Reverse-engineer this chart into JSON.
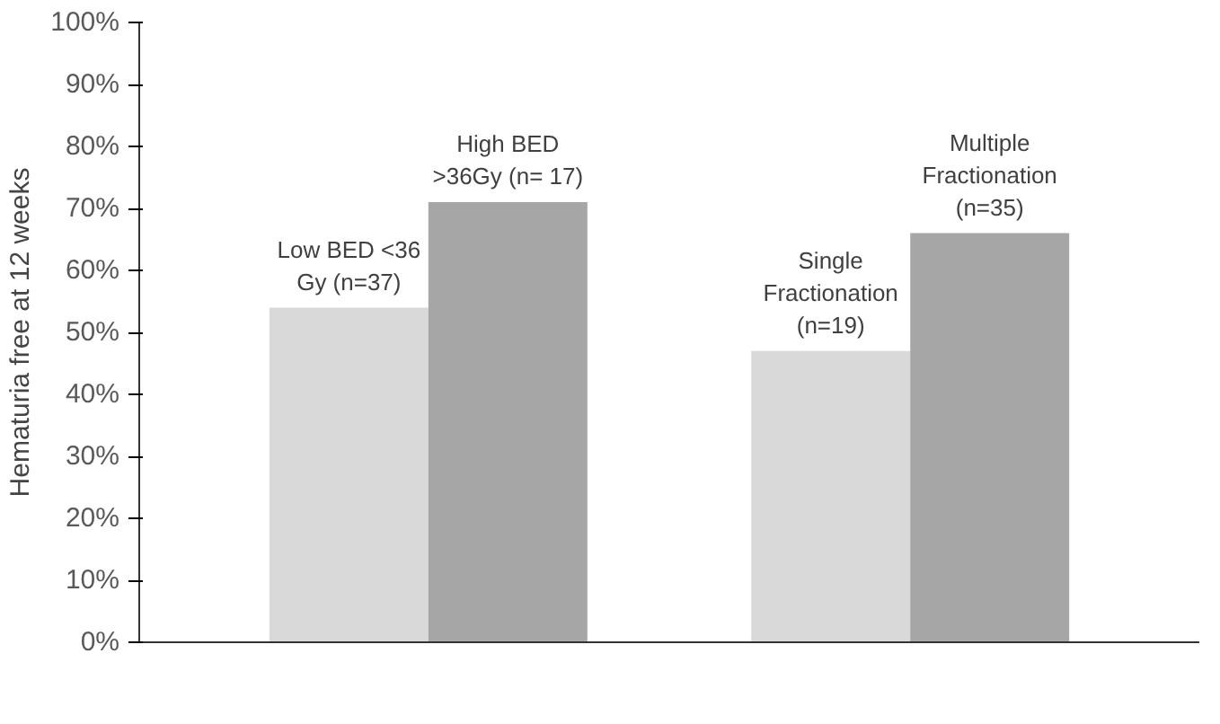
{
  "chart_data": {
    "type": "bar",
    "ylabel": "Hematuria free at 12 weeks",
    "categories": [
      null,
      null
    ],
    "series": [
      {
        "color": "#d9d9d9",
        "values": [
          54,
          47
        ]
      },
      {
        "color": "#a6a6a6",
        "values": [
          71,
          66
        ]
      }
    ],
    "ylim": [
      0,
      100
    ],
    "yticks": [
      {
        "value": 0,
        "label": "0%"
      },
      {
        "value": 10,
        "label": "10%"
      },
      {
        "value": 20,
        "label": "20%"
      },
      {
        "value": 30,
        "label": "30%"
      },
      {
        "value": 40,
        "label": "40%"
      },
      {
        "value": 50,
        "label": "50%"
      },
      {
        "value": 60,
        "label": "60%"
      },
      {
        "value": 70,
        "label": "70%"
      },
      {
        "value": 80,
        "label": "80%"
      },
      {
        "value": 90,
        "label": "90%"
      },
      {
        "value": 100,
        "label": "100%"
      }
    ],
    "annotations": [
      {
        "text": "Low BED <36\nGy (n=37)",
        "y": 54
      },
      {
        "text": "High BED\n>36Gy (n= 17)",
        "y": 71
      },
      {
        "text": "Single\nFractionation\n(n=19)",
        "y": 47
      },
      {
        "text": "Multiple\nFractionation\n(n=35)",
        "y": 66
      }
    ],
    "grid": false
  }
}
